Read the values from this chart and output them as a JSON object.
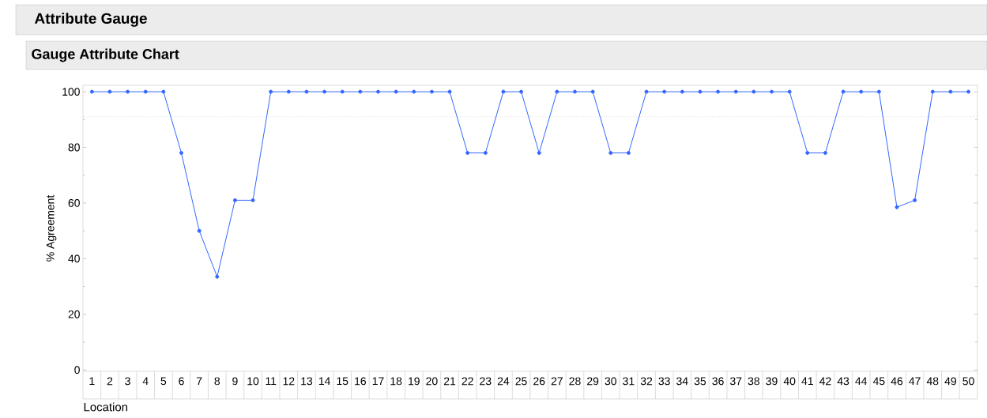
{
  "chart_data": {
    "type": "line",
    "title": "Attribute Gauge",
    "subtitle": "Gauge Attribute Chart",
    "xlabel": "Location",
    "ylabel": "% Agreement",
    "categories": [
      "1",
      "2",
      "3",
      "4",
      "5",
      "6",
      "7",
      "8",
      "9",
      "10",
      "11",
      "12",
      "13",
      "14",
      "15",
      "16",
      "17",
      "18",
      "19",
      "20",
      "21",
      "22",
      "23",
      "24",
      "25",
      "26",
      "27",
      "28",
      "29",
      "30",
      "31",
      "32",
      "33",
      "34",
      "35",
      "36",
      "37",
      "38",
      "39",
      "40",
      "41",
      "42",
      "43",
      "44",
      "45",
      "46",
      "47",
      "48",
      "49",
      "50"
    ],
    "series": [
      {
        "color": "#3366ff",
        "values": [
          100,
          100,
          100,
          100,
          100,
          78,
          50,
          33.5,
          61,
          61,
          100,
          100,
          100,
          100,
          100,
          100,
          100,
          100,
          100,
          100,
          100,
          78,
          78,
          100,
          100,
          78,
          100,
          100,
          100,
          78,
          78,
          100,
          100,
          100,
          100,
          100,
          100,
          100,
          100,
          100,
          78,
          78,
          100,
          100,
          100,
          58.5,
          61,
          100,
          100,
          100
        ]
      }
    ],
    "ylim": [
      -0.5,
      102.3
    ],
    "yticks": [
      0,
      20,
      40,
      60,
      80,
      100
    ],
    "marker": "circle",
    "line_style": "solid",
    "grid": false,
    "ref_lines": [
      {
        "axis": "y",
        "value": 91,
        "color": "#666666",
        "line_style": "dotted"
      }
    ]
  }
}
